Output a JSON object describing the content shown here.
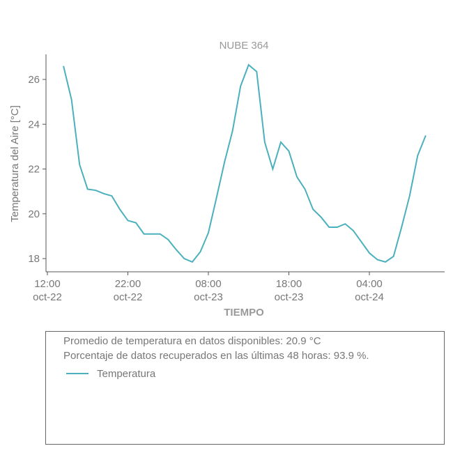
{
  "chart_data": {
    "type": "line",
    "title": "NUBE 364",
    "xlabel": "TIEMPO",
    "ylabel": "Temperatura del Aire [°C]",
    "x": [
      2,
      3,
      4,
      5,
      6,
      7,
      8,
      9,
      10,
      11,
      12,
      13,
      14,
      15,
      16,
      17,
      18,
      19,
      20,
      21,
      22,
      23,
      24,
      25,
      26,
      27,
      28,
      29,
      30,
      31,
      32,
      33,
      34,
      35,
      36,
      37,
      38,
      39,
      40,
      41,
      42,
      43,
      44,
      45,
      46,
      47
    ],
    "series": [
      {
        "name": "Temperatura",
        "color": "#4bb0bd",
        "values": [
          26.6,
          25.1,
          22.2,
          21.1,
          21.05,
          20.9,
          20.8,
          20.2,
          19.7,
          19.6,
          19.1,
          19.1,
          19.1,
          18.85,
          18.4,
          18.0,
          17.85,
          18.3,
          19.15,
          20.7,
          22.3,
          23.7,
          25.7,
          26.65,
          26.35,
          23.2,
          22.0,
          23.2,
          22.8,
          21.65,
          21.1,
          20.2,
          19.85,
          19.4,
          19.4,
          19.55,
          19.25,
          18.75,
          18.25,
          17.95,
          17.85,
          18.1,
          19.4,
          20.8,
          22.6,
          23.5
        ]
      }
    ],
    "xlim": [
      -0.17,
      49.35
    ],
    "xticks": [
      {
        "value": 0,
        "label": [
          "12:00",
          "oct-22"
        ]
      },
      {
        "value": 10,
        "label": [
          "22:00",
          "oct-22"
        ]
      },
      {
        "value": 20,
        "label": [
          "08:00",
          "oct-23"
        ]
      },
      {
        "value": 30,
        "label": [
          "18:00",
          "oct-23"
        ]
      },
      {
        "value": 40,
        "label": [
          "04:00",
          "oct-24"
        ]
      }
    ],
    "ylim": [
      17.41,
      27.12
    ],
    "yticks": [
      18,
      20,
      22,
      24,
      26
    ],
    "grid": false,
    "annotations": [
      "Promedio de temperatura en datos disponibles: 20.9 °C",
      "Porcentaje de datos recuperados en las últimas 48 horas: 93.9 %."
    ]
  }
}
